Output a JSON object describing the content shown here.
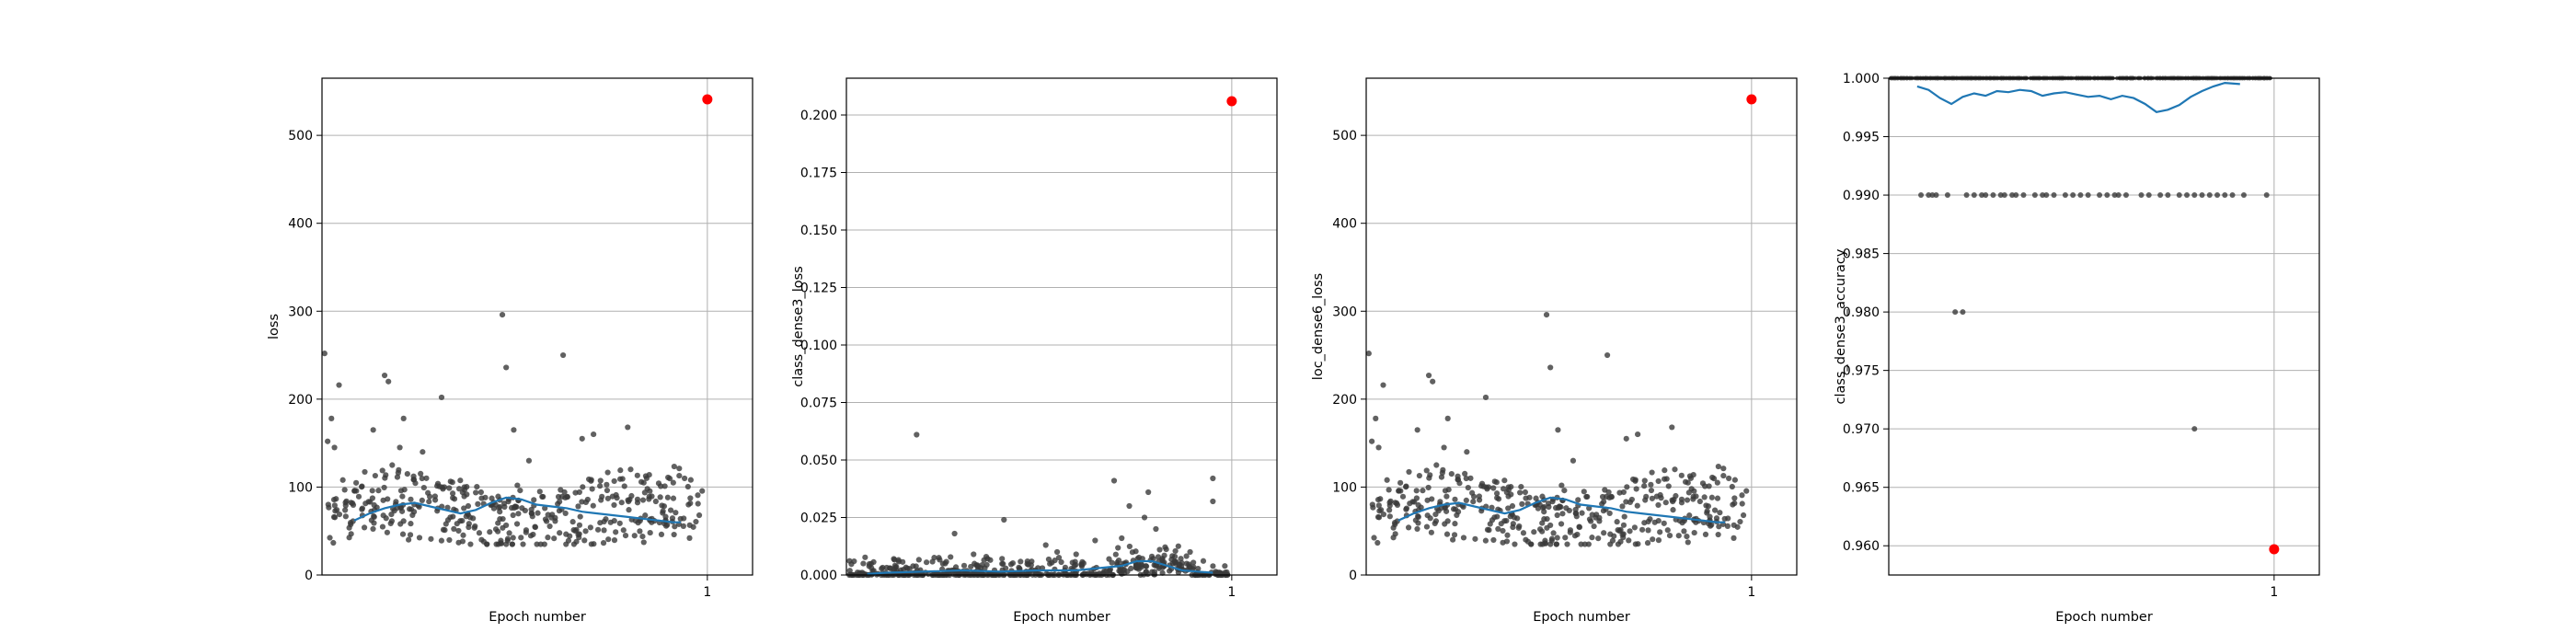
{
  "figure": {
    "background": "#ffffff"
  },
  "colors": {
    "points": "#3a3a3a",
    "trend": "#1f77b4",
    "final": "#ff0000",
    "grid": "#b0b0b0"
  },
  "chart_data": [
    {
      "type": "scatter",
      "title": "",
      "xlabel": "Epoch number",
      "ylabel": "loss",
      "xticks": [
        "1"
      ],
      "yticks": [
        "0",
        "100",
        "200",
        "300",
        "400",
        "500"
      ],
      "ylim": [
        0,
        565
      ],
      "grid": true,
      "final_point": {
        "epoch": 1,
        "value": 541
      },
      "trend": [
        [
          0.08,
          62
        ],
        [
          0.12,
          70
        ],
        [
          0.16,
          76
        ],
        [
          0.2,
          80
        ],
        [
          0.24,
          82
        ],
        [
          0.28,
          78
        ],
        [
          0.32,
          74
        ],
        [
          0.36,
          70
        ],
        [
          0.4,
          74
        ],
        [
          0.44,
          82
        ],
        [
          0.48,
          88
        ],
        [
          0.52,
          86
        ],
        [
          0.56,
          80
        ],
        [
          0.6,
          78
        ],
        [
          0.64,
          76
        ],
        [
          0.68,
          72
        ],
        [
          0.72,
          70
        ],
        [
          0.76,
          68
        ],
        [
          0.8,
          66
        ],
        [
          0.84,
          64
        ],
        [
          0.88,
          62
        ],
        [
          0.92,
          60
        ],
        [
          0.94,
          60
        ]
      ],
      "scatter": [
        [
          0.002,
          252
        ],
        [
          0.01,
          152
        ],
        [
          0.02,
          178
        ],
        [
          0.028,
          145
        ],
        [
          0.04,
          216
        ],
        [
          0.05,
          108
        ],
        [
          0.13,
          165
        ],
        [
          0.16,
          227
        ],
        [
          0.17,
          220
        ],
        [
          0.18,
          125
        ],
        [
          0.21,
          178
        ],
        [
          0.22,
          115
        ],
        [
          0.2,
          145
        ],
        [
          0.26,
          140
        ],
        [
          0.27,
          110
        ],
        [
          0.31,
          202
        ],
        [
          0.37,
          100
        ],
        [
          0.47,
          296
        ],
        [
          0.48,
          236
        ],
        [
          0.5,
          165
        ],
        [
          0.54,
          130
        ],
        [
          0.63,
          250
        ],
        [
          0.71,
          160
        ],
        [
          0.68,
          155
        ],
        [
          0.8,
          168
        ],
        [
          0.85,
          110
        ],
        [
          0.92,
          105
        ],
        [
          0.96,
          80
        ]
      ]
    },
    {
      "type": "scatter",
      "title": "",
      "xlabel": "Epoch number",
      "ylabel": "class_dense3_loss",
      "xticks": [
        "1"
      ],
      "yticks": [
        "0.000",
        "0.025",
        "0.050",
        "0.075",
        "0.100",
        "0.125",
        "0.150",
        "0.175",
        "0.200"
      ],
      "ylim": [
        0,
        0.216
      ],
      "grid": true,
      "final_point": {
        "epoch": 1,
        "value": 0.206
      },
      "trend": [
        [
          0.05,
          0.0005
        ],
        [
          0.1,
          0.001
        ],
        [
          0.2,
          0.0015
        ],
        [
          0.3,
          0.002
        ],
        [
          0.4,
          0.0015
        ],
        [
          0.5,
          0.002
        ],
        [
          0.6,
          0.002
        ],
        [
          0.66,
          0.003
        ],
        [
          0.72,
          0.004
        ],
        [
          0.76,
          0.006
        ],
        [
          0.8,
          0.006
        ],
        [
          0.84,
          0.004
        ],
        [
          0.88,
          0.002
        ],
        [
          0.92,
          0.0015
        ],
        [
          0.96,
          0.001
        ]
      ],
      "scatter": [
        [
          0.18,
          0.061
        ],
        [
          0.28,
          0.018
        ],
        [
          0.41,
          0.024
        ],
        [
          0.52,
          0.013
        ],
        [
          0.65,
          0.015
        ],
        [
          0.7,
          0.041
        ],
        [
          0.72,
          0.016
        ],
        [
          0.74,
          0.03
        ],
        [
          0.78,
          0.025
        ],
        [
          0.79,
          0.036
        ],
        [
          0.81,
          0.02
        ],
        [
          0.82,
          0.011
        ],
        [
          0.86,
          0.008
        ],
        [
          0.9,
          0.01
        ],
        [
          0.96,
          0.042
        ],
        [
          0.96,
          0.032
        ],
        [
          0.55,
          0.01
        ],
        [
          0.6,
          0.009
        ],
        [
          0.33,
          0.009
        ],
        [
          0.12,
          0.007
        ]
      ]
    },
    {
      "type": "scatter",
      "title": "",
      "xlabel": "Epoch number",
      "ylabel": "loc_dense6_loss",
      "xticks": [
        "1"
      ],
      "yticks": [
        "0",
        "100",
        "200",
        "300",
        "400",
        "500"
      ],
      "ylim": [
        0,
        565
      ],
      "grid": true,
      "final_point": {
        "epoch": 1,
        "value": 541
      },
      "trend": [
        [
          0.08,
          62
        ],
        [
          0.12,
          70
        ],
        [
          0.16,
          76
        ],
        [
          0.2,
          80
        ],
        [
          0.24,
          82
        ],
        [
          0.28,
          78
        ],
        [
          0.32,
          74
        ],
        [
          0.36,
          70
        ],
        [
          0.4,
          74
        ],
        [
          0.44,
          82
        ],
        [
          0.48,
          88
        ],
        [
          0.52,
          86
        ],
        [
          0.56,
          80
        ],
        [
          0.6,
          78
        ],
        [
          0.64,
          76
        ],
        [
          0.68,
          72
        ],
        [
          0.72,
          70
        ],
        [
          0.76,
          68
        ],
        [
          0.8,
          66
        ],
        [
          0.84,
          64
        ],
        [
          0.88,
          62
        ],
        [
          0.92,
          60
        ],
        [
          0.94,
          60
        ]
      ],
      "scatter": [
        [
          0.002,
          252
        ],
        [
          0.01,
          152
        ],
        [
          0.02,
          178
        ],
        [
          0.028,
          145
        ],
        [
          0.04,
          216
        ],
        [
          0.05,
          108
        ],
        [
          0.13,
          165
        ],
        [
          0.16,
          227
        ],
        [
          0.17,
          220
        ],
        [
          0.18,
          125
        ],
        [
          0.21,
          178
        ],
        [
          0.22,
          115
        ],
        [
          0.2,
          145
        ],
        [
          0.26,
          140
        ],
        [
          0.27,
          110
        ],
        [
          0.31,
          202
        ],
        [
          0.37,
          100
        ],
        [
          0.47,
          296
        ],
        [
          0.48,
          236
        ],
        [
          0.5,
          165
        ],
        [
          0.54,
          130
        ],
        [
          0.63,
          250
        ],
        [
          0.71,
          160
        ],
        [
          0.68,
          155
        ],
        [
          0.8,
          168
        ],
        [
          0.85,
          110
        ],
        [
          0.92,
          105
        ],
        [
          0.96,
          80
        ]
      ]
    },
    {
      "type": "scatter",
      "title": "",
      "xlabel": "Epoch number",
      "ylabel": "class_dense3_accuracy",
      "xticks": [
        "1"
      ],
      "yticks": [
        "0.960",
        "0.965",
        "0.970",
        "0.975",
        "0.980",
        "0.985",
        "0.990",
        "0.995",
        "1.000"
      ],
      "ylim": [
        0.9575,
        1.0
      ],
      "grid": true,
      "final_point": {
        "epoch": 1,
        "value": 0.9597
      },
      "trend": [
        [
          0.07,
          0.9993
        ],
        [
          0.1,
          0.999
        ],
        [
          0.13,
          0.9983
        ],
        [
          0.16,
          0.9978
        ],
        [
          0.19,
          0.9984
        ],
        [
          0.22,
          0.9987
        ],
        [
          0.25,
          0.9985
        ],
        [
          0.28,
          0.9989
        ],
        [
          0.31,
          0.9988
        ],
        [
          0.34,
          0.999
        ],
        [
          0.37,
          0.9989
        ],
        [
          0.4,
          0.9985
        ],
        [
          0.43,
          0.9987
        ],
        [
          0.46,
          0.9988
        ],
        [
          0.49,
          0.9986
        ],
        [
          0.52,
          0.9984
        ],
        [
          0.55,
          0.9985
        ],
        [
          0.58,
          0.9982
        ],
        [
          0.61,
          0.9985
        ],
        [
          0.64,
          0.9983
        ],
        [
          0.67,
          0.9978
        ],
        [
          0.7,
          0.9971
        ],
        [
          0.73,
          0.9973
        ],
        [
          0.76,
          0.9977
        ],
        [
          0.79,
          0.9984
        ],
        [
          0.82,
          0.9989
        ],
        [
          0.85,
          0.9993
        ],
        [
          0.88,
          0.9996
        ],
        [
          0.92,
          0.9995
        ]
      ],
      "scatter": [
        [
          0.17,
          0.98
        ],
        [
          0.19,
          0.98
        ],
        [
          0.8,
          0.97
        ]
      ],
      "accuracy_rows": [
        {
          "value": 0.99,
          "epochs": [
            0.08,
            0.1,
            0.11,
            0.12,
            0.15,
            0.2,
            0.22,
            0.24,
            0.25,
            0.27,
            0.29,
            0.3,
            0.32,
            0.33,
            0.35,
            0.38,
            0.4,
            0.41,
            0.43,
            0.46,
            0.48,
            0.5,
            0.52,
            0.55,
            0.57,
            0.59,
            0.6,
            0.62,
            0.66,
            0.68,
            0.71,
            0.73,
            0.76,
            0.78,
            0.8,
            0.82,
            0.84,
            0.86,
            0.88,
            0.9,
            0.93,
            0.99
          ]
        }
      ]
    }
  ]
}
